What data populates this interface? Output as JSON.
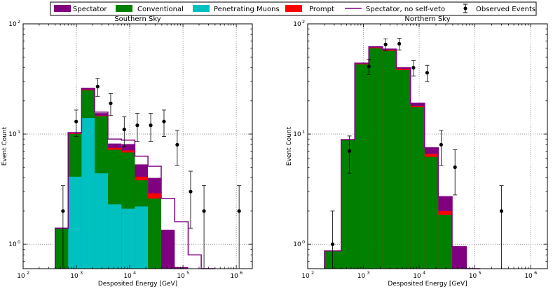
{
  "colors": {
    "spectator": "#800080",
    "conventional": "#008000",
    "penetrating": "#00c0c0",
    "prompt": "#ff0000",
    "spectator_line": "#800080",
    "observed": "#000000"
  },
  "legend": {
    "items": [
      {
        "key": "spectator",
        "label": "Spectator",
        "style": "patch"
      },
      {
        "key": "conventional",
        "label": "Conventional",
        "style": "patch"
      },
      {
        "key": "penetrating",
        "label": "Penetrating Muons",
        "style": "patch"
      },
      {
        "key": "prompt",
        "label": "Prompt",
        "style": "patch"
      },
      {
        "key": "spectator_line",
        "label": "Spectator, no self-veto",
        "style": "line"
      },
      {
        "key": "observed",
        "label": "Observed Events",
        "style": "errorbar"
      }
    ]
  },
  "chart_data": [
    {
      "type": "bar",
      "title": "Southern Sky",
      "xlabel": "Desposited Energy [GeV]",
      "ylabel": "Event Count",
      "xscale": "log",
      "yscale": "log",
      "xlim": [
        100,
        2000000
      ],
      "ylim": [
        0.6,
        100
      ],
      "xtick_values": [
        100,
        1000,
        10000,
        100000,
        1000000
      ],
      "xtick_labels": [
        "10",
        "10",
        "10",
        "10",
        "10"
      ],
      "xtick_exponents": [
        "2",
        "3",
        "4",
        "5",
        "6"
      ],
      "ytick_values": [
        1,
        10,
        100
      ],
      "ytick_labels": [
        "10",
        "10",
        "10"
      ],
      "ytick_exponents": [
        "0",
        "1",
        "2"
      ],
      "grid": true,
      "bin_edges": [
        400,
        700,
        1250,
        2200,
        3900,
        7000,
        12500,
        22000,
        39000,
        70000,
        125000,
        220000,
        390000
      ],
      "stack": {
        "penetrating": [
          0.6,
          4.1,
          14,
          4.4,
          2.3,
          2.1,
          2.2,
          0.6,
          0.6,
          0.6,
          0.6,
          0.6
        ],
        "conventional": [
          1.4,
          10,
          25,
          14.5,
          7.2,
          6.8,
          3.8,
          2.6,
          0.6,
          0.6,
          0.6,
          0.6
        ],
        "prompt": [
          1.4,
          10.1,
          25.3,
          14.7,
          7.5,
          7.1,
          4.1,
          2.9,
          0.6,
          0.6,
          0.6,
          0.6
        ],
        "spectator": [
          1.4,
          10.3,
          26,
          15.5,
          8.2,
          8.1,
          5.3,
          4.0,
          1.35,
          0.62,
          0.6,
          0.6
        ]
      },
      "spectator_no_veto": [
        1.4,
        10.3,
        26,
        15.8,
        9.0,
        8.8,
        6.3,
        5.1,
        2.6,
        1.6,
        0.8,
        0.6
      ],
      "observed": {
        "x": [
          560,
          990,
          2500,
          4400,
          7900,
          13900,
          24800,
          44000,
          78000,
          139000,
          248000,
          1130000
        ],
        "y": [
          2,
          13,
          27,
          19,
          11,
          12,
          12,
          13,
          8,
          3,
          2,
          2
        ],
        "yerr_low": [
          1.8,
          3.5,
          5,
          4.3,
          3.3,
          3.4,
          3.4,
          3.5,
          2.8,
          1.6,
          1.8,
          1.8
        ],
        "yerr_high": [
          1.4,
          3.5,
          5,
          4.3,
          3.3,
          3.4,
          3.4,
          3.5,
          2.8,
          1.6,
          1.4,
          1.4
        ]
      }
    },
    {
      "type": "bar",
      "title": "Northern Sky",
      "xlabel": "Desposited Energy [GeV]",
      "ylabel": "Event Count",
      "xscale": "log",
      "yscale": "log",
      "xlim": [
        100,
        2000000
      ],
      "ylim": [
        0.6,
        100
      ],
      "xtick_values": [
        100,
        1000,
        10000,
        100000,
        1000000
      ],
      "xtick_labels": [
        "10",
        "10",
        "10",
        "10",
        "10"
      ],
      "xtick_exponents": [
        "2",
        "3",
        "4",
        "5",
        "6"
      ],
      "ytick_values": [
        1,
        10,
        100
      ],
      "ytick_labels": [
        "10",
        "10",
        "10"
      ],
      "ytick_exponents": [
        "0",
        "1",
        "2"
      ],
      "grid": true,
      "bin_edges": [
        200,
        400,
        700,
        1250,
        2200,
        3900,
        7000,
        12500,
        22000,
        39000,
        70000,
        125000
      ],
      "stack": {
        "penetrating": [
          0.6,
          0.6,
          0.6,
          0.6,
          0.6,
          0.6,
          0.6,
          0.6,
          0.6,
          0.6,
          0.6
        ],
        "conventional": [
          0.87,
          8.8,
          43,
          60,
          57,
          38,
          17.5,
          6.2,
          1.85,
          0.6,
          0.6
        ],
        "prompt": [
          0.87,
          8.8,
          43.5,
          61,
          58,
          39,
          18,
          6.6,
          2.0,
          0.6,
          0.6
        ],
        "spectator": [
          0.87,
          8.9,
          44,
          62,
          59,
          40,
          19,
          7.5,
          2.7,
          0.95,
          0.6
        ]
      },
      "spectator_no_veto": [
        0.87,
        8.9,
        44,
        62,
        59,
        40,
        19,
        7.5,
        2.7,
        0.95,
        0.6
      ],
      "observed": {
        "x": [
          280,
          560,
          1250,
          2500,
          4400,
          7900,
          13900,
          24800,
          44000,
          300000
        ],
        "y": [
          1,
          7,
          41,
          65,
          66,
          40,
          36,
          8,
          5,
          2
        ],
        "yerr_low": [
          0.8,
          2.6,
          6.4,
          8,
          8,
          6.3,
          6,
          2.8,
          2.2,
          1.8
        ],
        "yerr_high": [
          1.0,
          2.6,
          6.4,
          8,
          8,
          6.3,
          6,
          2.8,
          2.2,
          1.4
        ]
      }
    }
  ]
}
